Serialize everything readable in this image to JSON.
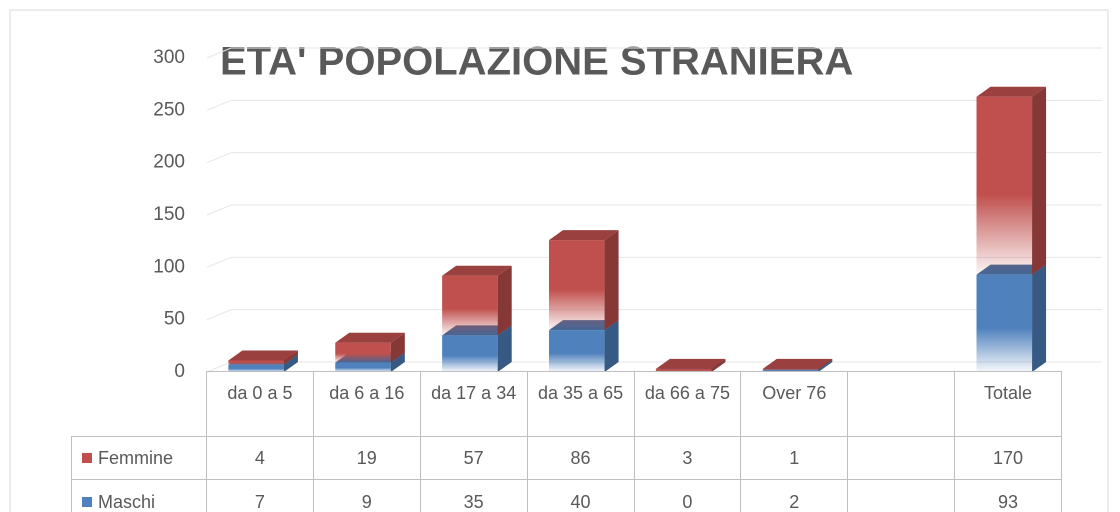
{
  "chart_data": {
    "type": "bar3d_stacked",
    "title": "ETA' POPOLAZIONE STRANIERA",
    "categories": [
      "da 0 a 5",
      "da 6 a 16",
      "da 17 a 34",
      "da 35 a 65",
      "da 66 a 75",
      "Over 76",
      null,
      "Totale"
    ],
    "series": [
      {
        "name": "Maschi",
        "color": "#4f81bd",
        "values": [
          7,
          9,
          35,
          40,
          0,
          2,
          null,
          93
        ]
      },
      {
        "name": "Femmine",
        "color": "#c0504d",
        "values": [
          4,
          19,
          57,
          86,
          3,
          1,
          null,
          170
        ]
      }
    ],
    "ylim": [
      0,
      300
    ],
    "yticks": [
      0,
      50,
      100,
      150,
      200,
      250,
      300
    ],
    "grid": true
  }
}
